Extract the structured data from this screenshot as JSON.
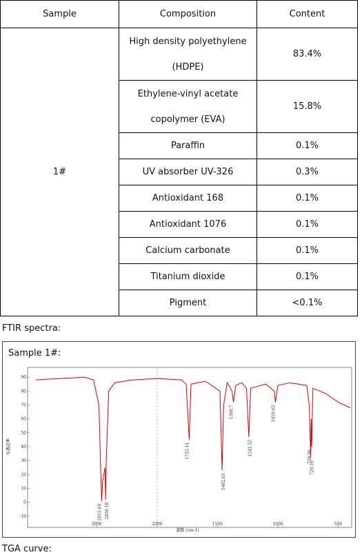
{
  "table": {
    "header": [
      "Sample",
      "Composition",
      "Content"
    ],
    "sample": "1#",
    "rows": [
      [
        "High density polyethylene (HDPE)",
        "83.4%"
      ],
      [
        "Ethylene-vinyl acetate copolymer (EVA)",
        "15.8%"
      ],
      [
        "Paraffin",
        "0.1%"
      ],
      [
        "UV absorber UV-326",
        "0.3%"
      ],
      [
        "Antioxidant 168",
        "0.1%"
      ],
      [
        "Antioxidant 1076",
        "0.1%"
      ],
      [
        "Calcium carbonate",
        "0.1%"
      ],
      [
        "Titanium dioxide",
        "0.1%"
      ],
      [
        "Pigment",
        "<0.1%"
      ]
    ]
  },
  "ftir_label": "FTIR spectra:",
  "figure": {
    "caption": "Sample 1#:",
    "chart_data": {
      "type": "line",
      "xlabel": "波数 (cm-1)",
      "ylabel": "%透过率",
      "xlim": [
        4000,
        400
      ],
      "x_break": 2000,
      "xticks": [
        3000,
        2000,
        1500,
        1000,
        500
      ],
      "ylim": [
        -15,
        95
      ],
      "yticks": [
        90,
        80,
        70,
        60,
        50,
        40,
        30,
        20,
        10,
        0,
        -10
      ],
      "series": [
        {
          "color": "#d40000",
          "x": [
            4000,
            3600,
            3200,
            3050,
            2960,
            2930,
            2915,
            2900,
            2860,
            2850,
            2840,
            2800,
            2700,
            2400,
            2000,
            1800,
            1760,
            1735,
            1720,
            1600,
            1480,
            1462,
            1450,
            1420,
            1380,
            1368,
            1350,
            1300,
            1260,
            1241,
            1225,
            1100,
            1030,
            1020,
            1000,
            900,
            760,
            740,
            728,
            724,
            720,
            710,
            600,
            500,
            400
          ],
          "values": [
            88,
            89,
            90,
            88,
            70,
            20,
            1,
            15,
            25,
            2,
            30,
            80,
            86,
            88,
            89,
            88,
            85,
            45,
            85,
            87,
            80,
            23,
            70,
            86,
            80,
            72,
            84,
            86,
            82,
            47,
            82,
            85,
            80,
            72,
            84,
            86,
            84,
            70,
            32,
            60,
            40,
            82,
            78,
            72,
            68
          ]
        }
      ],
      "annotations": [
        2915.69,
        2850.18,
        1735.14,
        1462.65,
        1368.7,
        1241.52,
        1020.65,
        728.16,
        {
          "value": 720,
          "label": "720.00"
        }
      ]
    }
  },
  "tga_label": "TGA curve:"
}
